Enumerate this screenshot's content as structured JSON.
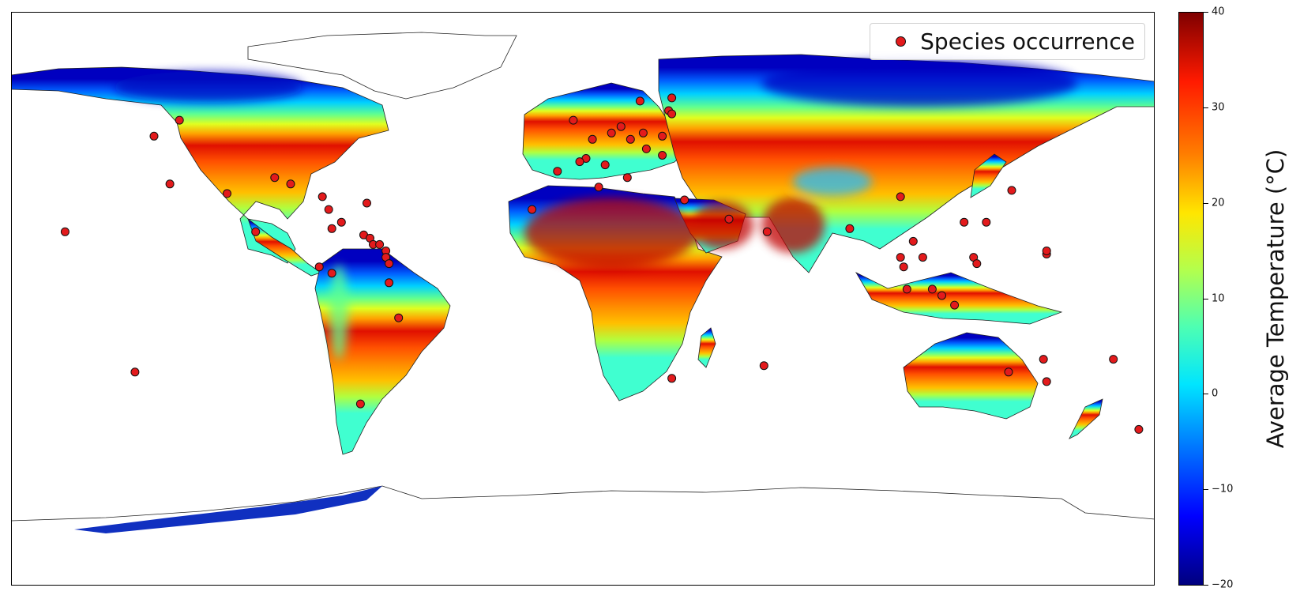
{
  "legend": {
    "label": "Species occurrence"
  },
  "colorbar": {
    "title": "Average Temperature (°C)",
    "ticks": [
      "40",
      "30",
      "20",
      "10",
      "0",
      "−10",
      "−20"
    ],
    "range": [
      -20,
      40
    ],
    "colormap": "jet"
  },
  "colors": {
    "marker_fill": "#e31a1c",
    "marker_edge": "#111111",
    "ocean": "#ffffff"
  },
  "map": {
    "projection": "plate-carree",
    "extent_lon": [
      -180,
      180
    ],
    "extent_lat": [
      -90,
      90
    ]
  },
  "occurrences": [
    {
      "lon": -127,
      "lat": 56
    },
    {
      "lon": -135,
      "lat": 51
    },
    {
      "lon": -130,
      "lat": 36
    },
    {
      "lon": -112,
      "lat": 33
    },
    {
      "lon": -97,
      "lat": 38
    },
    {
      "lon": -82,
      "lat": 32
    },
    {
      "lon": -80,
      "lat": 28
    },
    {
      "lon": -76,
      "lat": 24
    },
    {
      "lon": -79,
      "lat": 22
    },
    {
      "lon": -69,
      "lat": 20
    },
    {
      "lon": -67,
      "lat": 19
    },
    {
      "lon": -66,
      "lat": 17
    },
    {
      "lon": -64,
      "lat": 17
    },
    {
      "lon": -62,
      "lat": 15
    },
    {
      "lon": -62,
      "lat": 13
    },
    {
      "lon": -61,
      "lat": 11
    },
    {
      "lon": -61,
      "lat": 5
    },
    {
      "lon": -68,
      "lat": 30
    },
    {
      "lon": -103,
      "lat": 21
    },
    {
      "lon": -83,
      "lat": 10
    },
    {
      "lon": -79,
      "lat": 8
    },
    {
      "lon": -92,
      "lat": 36
    },
    {
      "lon": -58,
      "lat": -6
    },
    {
      "lon": -70,
      "lat": -33
    },
    {
      "lon": -141,
      "lat": -23
    },
    {
      "lon": -163,
      "lat": 21
    },
    {
      "lon": -8,
      "lat": 40
    },
    {
      "lon": -3,
      "lat": 56
    },
    {
      "lon": 1,
      "lat": 44
    },
    {
      "lon": 3,
      "lat": 50
    },
    {
      "lon": 5,
      "lat": 35
    },
    {
      "lon": 7,
      "lat": 42
    },
    {
      "lon": 9,
      "lat": 52
    },
    {
      "lon": 12,
      "lat": 54
    },
    {
      "lon": 15,
      "lat": 50
    },
    {
      "lon": 14,
      "lat": 38
    },
    {
      "lon": 18,
      "lat": 62
    },
    {
      "lon": 19,
      "lat": 52
    },
    {
      "lon": 25,
      "lat": 51
    },
    {
      "lon": 25,
      "lat": 45
    },
    {
      "lon": 27,
      "lat": 59
    },
    {
      "lon": 28,
      "lat": 63
    },
    {
      "lon": 28,
      "lat": 58
    },
    {
      "lon": -1,
      "lat": 43
    },
    {
      "lon": 20,
      "lat": 47
    },
    {
      "lon": -16,
      "lat": 28
    },
    {
      "lon": 32,
      "lat": 31
    },
    {
      "lon": 46,
      "lat": 25
    },
    {
      "lon": 28,
      "lat": -25
    },
    {
      "lon": 57,
      "lat": -21
    },
    {
      "lon": 100,
      "lat": 32
    },
    {
      "lon": 84,
      "lat": 22
    },
    {
      "lon": 120,
      "lat": 24
    },
    {
      "lon": 135,
      "lat": 34
    },
    {
      "lon": 127,
      "lat": 24
    },
    {
      "lon": 104,
      "lat": 18
    },
    {
      "lon": 100,
      "lat": 13
    },
    {
      "lon": 107,
      "lat": 13
    },
    {
      "lon": 101,
      "lat": 10
    },
    {
      "lon": 102,
      "lat": 3
    },
    {
      "lon": 110,
      "lat": 3
    },
    {
      "lon": 113,
      "lat": 1
    },
    {
      "lon": 123,
      "lat": 13
    },
    {
      "lon": 124,
      "lat": 11
    },
    {
      "lon": 117,
      "lat": -2
    },
    {
      "lon": 146,
      "lat": 14
    },
    {
      "lon": 146,
      "lat": 15
    },
    {
      "lon": 134,
      "lat": -23
    },
    {
      "lon": 146,
      "lat": -26
    },
    {
      "lon": 145,
      "lat": -19
    },
    {
      "lon": 167,
      "lat": -19
    },
    {
      "lon": 175,
      "lat": -41
    },
    {
      "lon": 58,
      "lat": 21
    }
  ]
}
